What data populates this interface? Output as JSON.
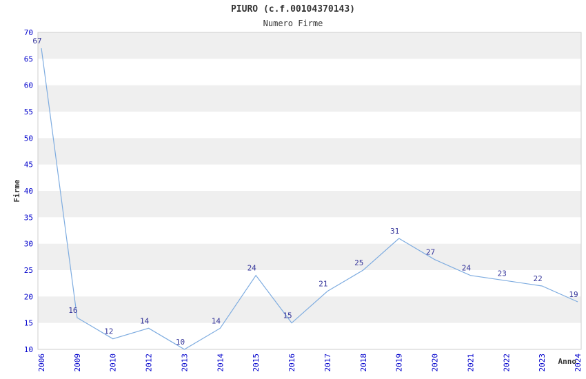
{
  "chart_data": {
    "type": "line",
    "title": "PIURO (c.f.00104370143)",
    "subtitle": "Numero Firme",
    "xlabel": "Anno",
    "ylabel": "Firme",
    "categories": [
      "2006",
      "2009",
      "2010",
      "2012",
      "2013",
      "2014",
      "2015",
      "2016",
      "2017",
      "2018",
      "2019",
      "2020",
      "2021",
      "2022",
      "2023",
      "2024"
    ],
    "values": [
      67,
      16,
      12,
      14,
      10,
      14,
      24,
      15,
      21,
      25,
      31,
      27,
      24,
      23,
      22,
      19
    ],
    "ylim": [
      10,
      70
    ],
    "ytick_step": 5,
    "yticks": [
      10,
      15,
      20,
      25,
      30,
      35,
      40,
      45,
      50,
      55,
      60,
      65,
      70
    ],
    "grid": "horizontal-bands",
    "legend": "none",
    "colors": {
      "line": "#7eace0",
      "band": "#efefef",
      "plot_bg": "#ffffff",
      "axis_border": "#cccccc",
      "tick_label": "#0000cc",
      "point_label": "#333399",
      "title": "#333333",
      "axis_title": "#333333"
    }
  }
}
